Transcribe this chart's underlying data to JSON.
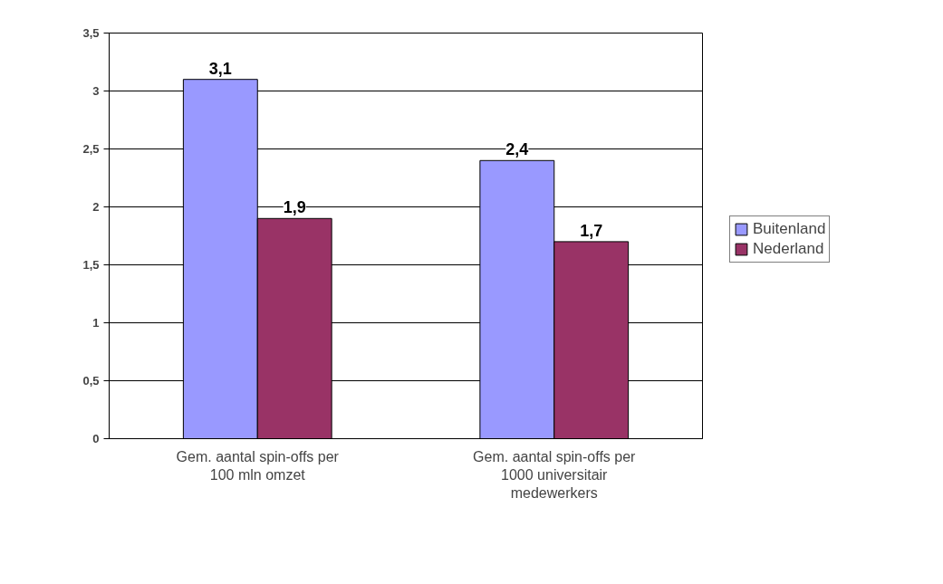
{
  "chart_data": {
    "type": "bar",
    "categories": [
      "Gem. aantal spin-offs per 100 mln omzet",
      "Gem. aantal spin-offs per 1000 universitair medewerkers"
    ],
    "series": [
      {
        "name": "Buitenland",
        "color": "#9999ff",
        "values": [
          3.1,
          2.4
        ],
        "value_labels": [
          "3,1",
          "2,4"
        ]
      },
      {
        "name": "Nederland",
        "color": "#993366",
        "values": [
          1.9,
          1.7
        ],
        "value_labels": [
          "1,9",
          "1,7"
        ]
      }
    ],
    "ylim": [
      0,
      3.5
    ],
    "yticks": [
      0,
      {
        "value": 0.5,
        "label": "0,5"
      },
      1,
      {
        "value": 1.5,
        "label": "1,5"
      },
      2,
      {
        "value": 2.5,
        "label": "2,5"
      },
      3,
      {
        "value": 3.5,
        "label": "3,5"
      }
    ],
    "grid": "y",
    "legend": "right"
  }
}
